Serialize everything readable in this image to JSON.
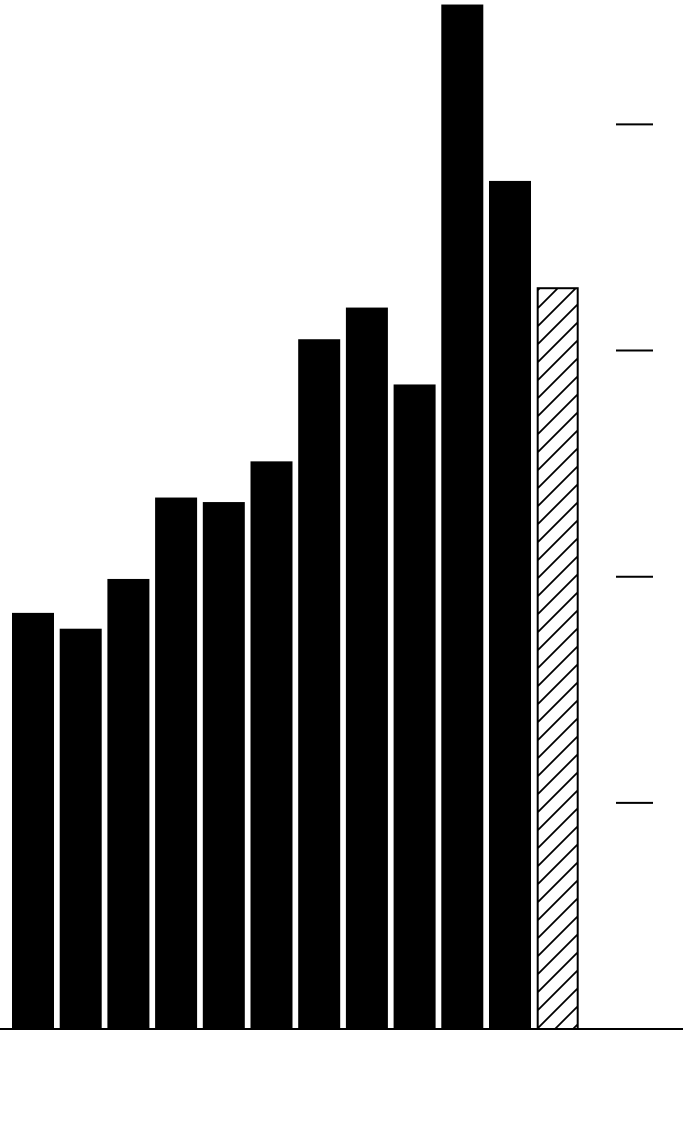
{
  "chart_data": {
    "type": "bar",
    "values": [
      1.84,
      1.77,
      1.99,
      2.35,
      2.33,
      2.51,
      3.05,
      3.19,
      2.85,
      4.53,
      3.75,
      3.28
    ],
    "fills": [
      "solid",
      "solid",
      "solid",
      "solid",
      "solid",
      "solid",
      "solid",
      "solid",
      "solid",
      "solid",
      "solid",
      "hatch"
    ],
    "color": "#000000",
    "ylim": [
      0,
      4.55
    ],
    "yticks": [
      1,
      2,
      3,
      4
    ]
  }
}
